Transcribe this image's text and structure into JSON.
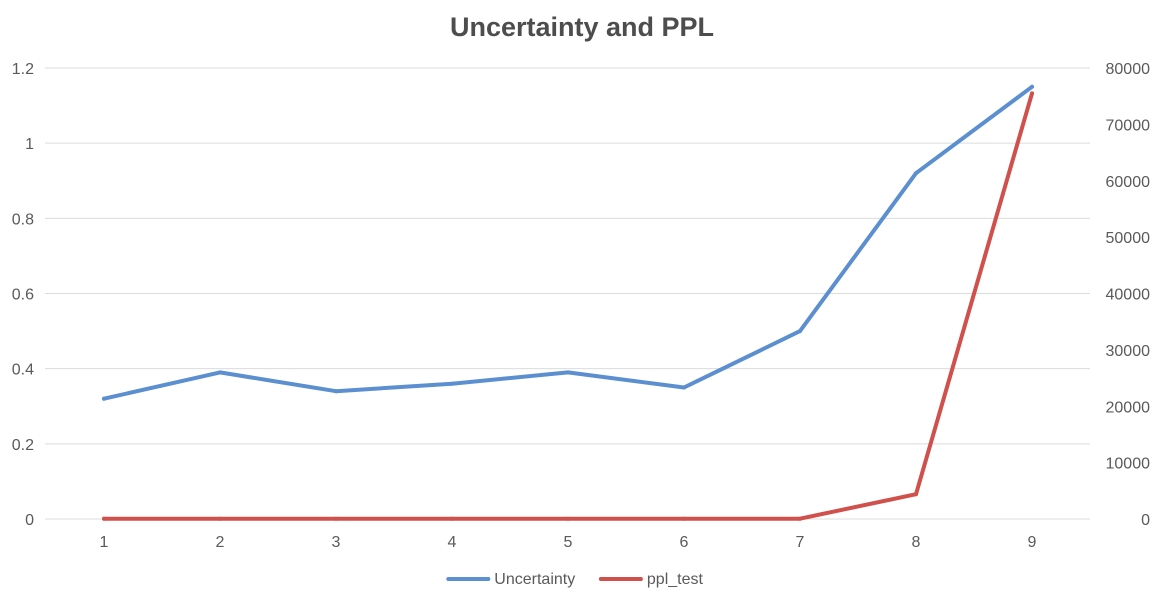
{
  "chart_data": {
    "type": "line",
    "title": "Uncertainty and PPL",
    "x": [
      1,
      2,
      3,
      4,
      5,
      6,
      7,
      8,
      9
    ],
    "x_tick_labels": [
      "1",
      "2",
      "3",
      "4",
      "5",
      "6",
      "7",
      "8",
      "9"
    ],
    "series": [
      {
        "name": "Uncertainty",
        "axis": "left",
        "color": "#5b8fd0",
        "values": [
          0.32,
          0.39,
          0.34,
          0.36,
          0.39,
          0.35,
          0.5,
          0.92,
          1.15
        ]
      },
      {
        "name": "ppl_test",
        "axis": "right",
        "color": "#d0504c",
        "values": [
          50,
          50,
          50,
          50,
          50,
          50,
          50,
          4400,
          75500
        ]
      }
    ],
    "y_left": {
      "range": [
        0,
        1.2
      ],
      "ticks": [
        0,
        0.2,
        0.4,
        0.6,
        0.8,
        1,
        1.2
      ],
      "tick_labels": [
        "0",
        "0.2",
        "0.4",
        "0.6",
        "0.8",
        "1",
        "1.2"
      ]
    },
    "y_right": {
      "range": [
        0,
        80000
      ],
      "ticks": [
        0,
        10000,
        20000,
        30000,
        40000,
        50000,
        60000,
        70000,
        80000
      ],
      "tick_labels": [
        "0",
        "10000",
        "20000",
        "30000",
        "40000",
        "50000",
        "60000",
        "70000",
        "80000"
      ]
    },
    "grid": true,
    "legend_position": "bottom-center"
  }
}
